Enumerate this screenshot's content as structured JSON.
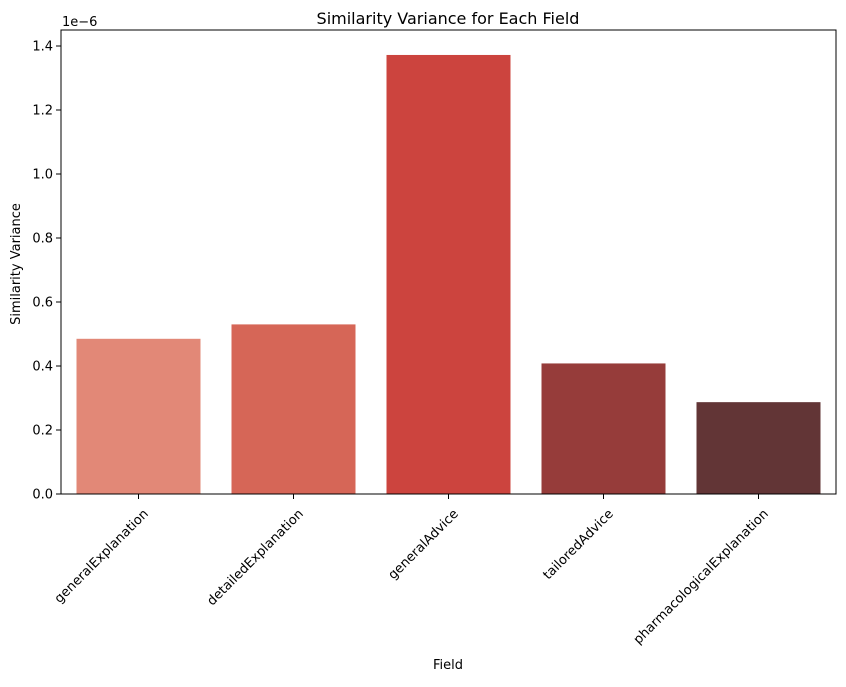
{
  "chart_data": {
    "type": "bar",
    "title": "Similarity Variance for Each Field",
    "xlabel": "Field",
    "ylabel": "Similarity Variance",
    "offset_label": "1e−6",
    "categories": [
      "generalExplanation",
      "detailedExplanation",
      "generalAdvice",
      "tailoredAdvice",
      "pharmacologicalExplanation"
    ],
    "values": [
      0.485,
      0.53,
      1.372,
      0.408,
      0.287
    ],
    "colors": [
      "#e28877",
      "#d66657",
      "#cc443e",
      "#963c3a",
      "#623536"
    ],
    "ylim": [
      0,
      1.4
    ],
    "yticks": [
      0.0,
      0.2,
      0.4,
      0.6,
      0.8,
      1.0,
      1.2,
      1.4
    ],
    "ytick_labels": [
      "0.0",
      "0.2",
      "0.4",
      "0.6",
      "0.8",
      "1.0",
      "1.2",
      "1.4"
    ],
    "grid": false,
    "legend": "none"
  }
}
